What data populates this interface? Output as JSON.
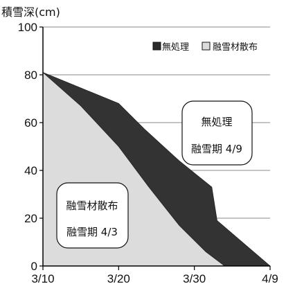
{
  "chart_data": {
    "type": "area",
    "ylabel": "積雪深(cm)",
    "xlabel": "",
    "x_ticks": [
      "3/10",
      "3/20",
      "3/30",
      "4/9"
    ],
    "x_tick_values": [
      0,
      10,
      20,
      30
    ],
    "ylim": [
      0,
      100
    ],
    "y_ticks": [
      0,
      20,
      40,
      60,
      80,
      100
    ],
    "grid": "horizontal",
    "legend_position": "top-right",
    "series": [
      {
        "name": "無処理",
        "color": "#333333",
        "x": [
          0,
          10,
          13.5,
          18,
          22.3,
          23,
          30
        ],
        "y": [
          81,
          68,
          57,
          44,
          33,
          19,
          0
        ]
      },
      {
        "name": "融雪材散布",
        "color": "#dcdcdc",
        "x": [
          0,
          5,
          10,
          14,
          18,
          21.5,
          24
        ],
        "y": [
          81,
          67,
          50,
          33,
          17,
          6,
          0
        ]
      }
    ],
    "annotations": [
      {
        "series": "無処理",
        "lines": [
          "無処理",
          "融雪期 4/9"
        ]
      },
      {
        "series": "融雪材散布",
        "lines": [
          "融雪材散布",
          "融雪期 4/3"
        ]
      }
    ]
  }
}
